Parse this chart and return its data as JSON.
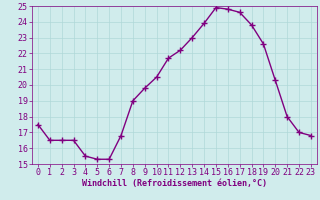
{
  "x": [
    0,
    1,
    2,
    3,
    4,
    5,
    6,
    7,
    8,
    9,
    10,
    11,
    12,
    13,
    14,
    15,
    16,
    17,
    18,
    19,
    20,
    21,
    22,
    23
  ],
  "y": [
    17.5,
    16.5,
    16.5,
    16.5,
    15.5,
    15.3,
    15.3,
    16.8,
    19.0,
    19.8,
    20.5,
    21.7,
    22.2,
    23.0,
    23.9,
    24.9,
    24.8,
    24.6,
    23.8,
    22.6,
    20.3,
    18.0,
    17.0,
    16.8
  ],
  "line_color": "#800080",
  "marker": "+",
  "marker_size": 4,
  "linewidth": 1.0,
  "ylim": [
    15,
    25
  ],
  "xlim": [
    -0.5,
    23.5
  ],
  "yticks": [
    15,
    16,
    17,
    18,
    19,
    20,
    21,
    22,
    23,
    24,
    25
  ],
  "xticks": [
    0,
    1,
    2,
    3,
    4,
    5,
    6,
    7,
    8,
    9,
    10,
    11,
    12,
    13,
    14,
    15,
    16,
    17,
    18,
    19,
    20,
    21,
    22,
    23
  ],
  "xlabel": "Windchill (Refroidissement éolien,°C)",
  "bg_color": "#d0ecec",
  "grid_color": "#b0d8d8",
  "tick_color": "#800080",
  "label_color": "#800080",
  "font_family": "monospace",
  "tick_fontsize": 6,
  "xlabel_fontsize": 6
}
